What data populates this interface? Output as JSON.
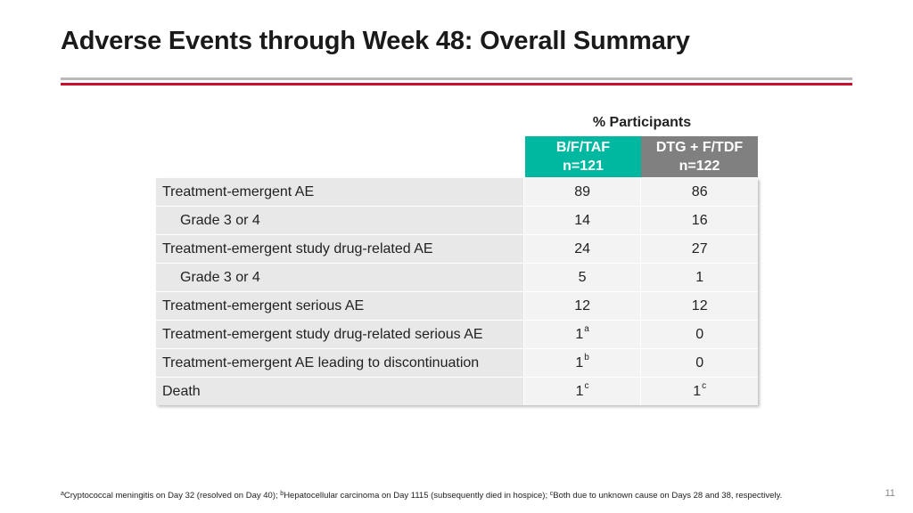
{
  "slide": {
    "title": "Adverse Events through Week 48: Overall Summary",
    "page_number": "11"
  },
  "colors": {
    "accent_red": "#c8102e",
    "bftaf_teal": "#00b8a0",
    "dtg_gray": "#808080"
  },
  "table": {
    "group_header": "% Participants",
    "columns": [
      {
        "name": "B/F/TAF",
        "n": "n=121"
      },
      {
        "name": "DTG + F/TDF",
        "n": "n=122"
      }
    ],
    "rows": [
      {
        "label": "Treatment-emergent AE",
        "indent": false,
        "v1": "89",
        "v1_sup": "",
        "v2": "86",
        "v2_sup": ""
      },
      {
        "label": "Grade 3 or 4",
        "indent": true,
        "v1": "14",
        "v1_sup": "",
        "v2": "16",
        "v2_sup": ""
      },
      {
        "label": "Treatment-emergent study drug-related AE",
        "indent": false,
        "v1": "24",
        "v1_sup": "",
        "v2": "27",
        "v2_sup": ""
      },
      {
        "label": "Grade 3 or 4",
        "indent": true,
        "v1": "5",
        "v1_sup": "",
        "v2": "1",
        "v2_sup": ""
      },
      {
        "label": "Treatment-emergent serious AE",
        "indent": false,
        "v1": "12",
        "v1_sup": "",
        "v2": "12",
        "v2_sup": ""
      },
      {
        "label": "Treatment-emergent study drug-related serious AE",
        "indent": false,
        "v1": "1",
        "v1_sup": "a",
        "v2": "0",
        "v2_sup": ""
      },
      {
        "label": "Treatment-emergent AE leading to discontinuation",
        "indent": false,
        "v1": "1",
        "v1_sup": "b",
        "v2": "0",
        "v2_sup": ""
      },
      {
        "label": "Death",
        "indent": false,
        "v1": "1",
        "v1_sup": "c",
        "v2": "1",
        "v2_sup": "c"
      }
    ]
  },
  "footnotes": [
    {
      "marker": "a",
      "text": "Cryptococcal meningitis on Day 32 (resolved on Day 40); "
    },
    {
      "marker": "b",
      "text": "Hepatocellular carcinoma on Day 1115 (subsequently died in hospice); "
    },
    {
      "marker": "c",
      "text": "Both due to unknown cause on Days 28 and 38, respectively."
    }
  ]
}
